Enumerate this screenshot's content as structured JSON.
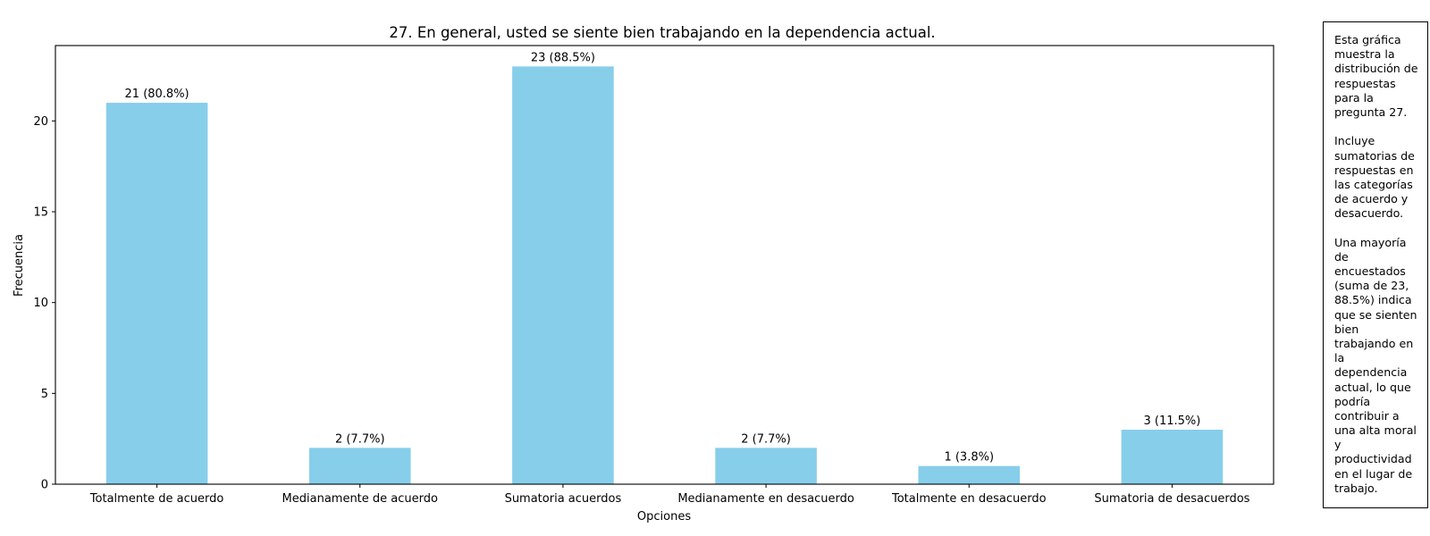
{
  "chart_data": {
    "type": "bar",
    "title": "27. En general, usted se siente bien trabajando en la dependencia actual.",
    "xlabel": "Opciones",
    "ylabel": "Frecuencia",
    "categories": [
      "Totalmente de acuerdo",
      "Medianamente de acuerdo",
      "Sumatoria acuerdos",
      "Medianamente en desacuerdo",
      "Totalmente en desacuerdo",
      "Sumatoria de desacuerdos"
    ],
    "values": [
      21,
      2,
      23,
      2,
      1,
      3
    ],
    "data_labels": [
      "21 (80.8%)",
      "2 (7.7%)",
      "23 (88.5%)",
      "2 (7.7%)",
      "1 (3.8%)",
      "3 (11.5%)"
    ],
    "ylim": [
      0,
      24.15
    ],
    "yticks": [
      0,
      5,
      10,
      15,
      20
    ],
    "bar_color": "#87CEEB",
    "grid": false,
    "legend": "none"
  },
  "note": {
    "lines": [
      "Esta gráfica",
      "muestra la",
      "distribución de",
      "respuestas",
      "para la",
      "pregunta 27.",
      "",
      "Incluye",
      "sumatorias de",
      "respuestas en",
      "las categorías",
      "de acuerdo y",
      "desacuerdo.",
      "",
      "Una mayoría",
      "de",
      "encuestados",
      "(suma de 23,",
      "88.5%) indica",
      "que se sienten",
      "bien",
      "trabajando en",
      "la",
      "dependencia",
      "actual, lo que",
      "podría",
      "contribuir a",
      "una alta moral",
      "y",
      "productividad",
      "en el lugar de",
      "trabajo."
    ]
  }
}
